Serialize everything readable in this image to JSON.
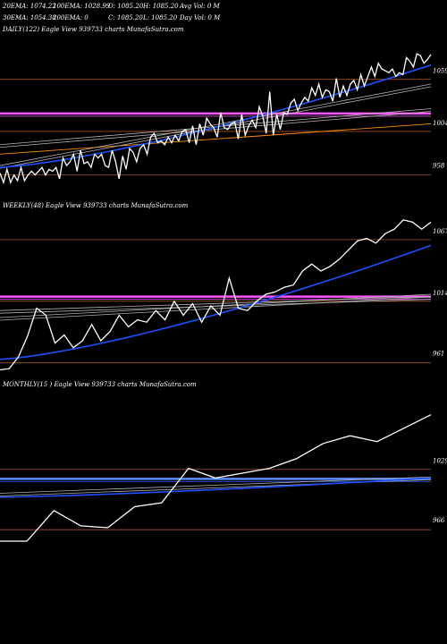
{
  "header": {
    "row1": [
      "20EMA: 1074.22",
      "100EMA: 1028.99",
      "O: 1085.20",
      "H: 1085.20",
      "Avg Vol: 0  M"
    ],
    "row2": [
      "30EMA: 1054.38",
      "200EMA: 0",
      "C: 1085.20",
      "L: 1085.20",
      "Day Vol: 0  M"
    ]
  },
  "panels": [
    {
      "label": "DAILY(122) Eagle   View  939733 charts MunafaSutra.com"
    },
    {
      "label": "WEEKLY(48) Eagle   View  939733 charts MunafaSutra.com"
    },
    {
      "label": "MONTHLY(15                    ) Eagle   View  939733 charts MunafaSutra.com"
    }
  ],
  "colors": {
    "background": "#000000",
    "price": "#ffffff",
    "ema20": "#1e50ff",
    "level": "#a0522d",
    "magenta": "#ff55ff",
    "orange": "#ff8c00",
    "blue_level": "#5d8cff",
    "grey": "#b0b0b0"
  },
  "chart_data": [
    {
      "type": "line",
      "name": "daily",
      "ylim": [
        935,
        1105
      ],
      "yticks": [
        {
          "value": 1059,
          "label": "1059"
        },
        {
          "value": 1004,
          "label": "1004"
        },
        {
          "value": 958,
          "label": "958"
        }
      ],
      "h_levels": [
        {
          "value": 1059,
          "color": "level"
        },
        {
          "value": 1004,
          "color": "level"
        },
        {
          "value": 958,
          "color": "level"
        },
        {
          "value": 1023,
          "color": "magenta",
          "thick": true
        }
      ],
      "price": [
        960,
        950,
        964,
        950,
        958,
        952,
        966,
        952,
        958,
        962,
        958,
        962,
        966,
        958,
        964,
        962,
        966,
        954,
        976,
        968,
        972,
        980,
        962,
        984,
        970,
        972,
        966,
        980,
        976,
        980,
        968,
        966,
        984,
        972,
        954,
        978,
        964,
        986,
        982,
        972,
        986,
        990,
        980,
        998,
        1002,
        992,
        994,
        990,
        998,
        992,
        1000,
        994,
        1004,
        1006,
        992,
        1010,
        990,
        1012,
        1000,
        1018,
        1012,
        1008,
        998,
        1024,
        1008,
        1006,
        1012,
        1014,
        996,
        1022,
        1000,
        1010,
        1016,
        1008,
        1030,
        1020,
        1002,
        1046,
        1000,
        1022,
        1006,
        1024,
        1022,
        1034,
        1038,
        1026,
        1034,
        1040,
        1036,
        1050,
        1042,
        1054,
        1040,
        1048,
        1046,
        1036,
        1060,
        1040,
        1052,
        1042,
        1054,
        1058,
        1048,
        1064,
        1052,
        1062,
        1072,
        1062,
        1076,
        1070,
        1068,
        1066,
        1070,
        1062,
        1066,
        1064,
        1082,
        1078,
        1072,
        1086,
        1084,
        1076,
        1080,
        1085.2
      ],
      "ema20_from": [
        0,
        966
      ],
      "ema20_to": [
        1,
        1074
      ],
      "ema30_from": [
        0,
        968
      ],
      "ema30_to": [
        1,
        1054
      ],
      "ema100_from": [
        0,
        990
      ],
      "ema100_to": [
        1,
        1028
      ],
      "orange_from": [
        0,
        980
      ],
      "orange_to": [
        1,
        1012
      ]
    },
    {
      "type": "line",
      "name": "weekly",
      "ylim": [
        950,
        1090
      ],
      "yticks": [
        {
          "value": 1067,
          "label": "1067"
        },
        {
          "value": 1014,
          "label": "1014"
        },
        {
          "value": 961,
          "label": "961"
        }
      ],
      "h_levels": [
        {
          "value": 1067,
          "color": "level"
        },
        {
          "value": 1014,
          "color": "level"
        },
        {
          "value": 961,
          "color": "level"
        },
        {
          "value": 1018,
          "color": "magenta",
          "thick": true
        }
      ],
      "price": [
        955,
        956,
        966,
        984,
        1008,
        1002,
        978,
        985,
        974,
        980,
        994,
        980,
        988,
        1002,
        992,
        998,
        996,
        1006,
        998,
        1014,
        1002,
        1012,
        996,
        1010,
        1002,
        1034,
        1008,
        1006,
        1014,
        1020,
        1022,
        1026,
        1028,
        1040,
        1046,
        1040,
        1044,
        1050,
        1058,
        1066,
        1068,
        1064,
        1072,
        1076,
        1084,
        1082,
        1076,
        1082
      ],
      "ema20_from": [
        0,
        964
      ],
      "ema20_to": [
        1,
        1062
      ],
      "ema30_from": [
        0,
        1006
      ],
      "ema30_to": [
        1,
        1018
      ],
      "ema100_from": [
        0,
        1000
      ],
      "ema100_to": [
        1,
        1020
      ]
    },
    {
      "type": "line",
      "name": "monthly",
      "ylim": [
        940,
        1110
      ],
      "yticks": [
        {
          "value": 1029,
          "label": "1029"
        },
        {
          "value": 966,
          "label": "966"
        }
      ],
      "h_levels": [
        {
          "value": 1029,
          "color": "level"
        },
        {
          "value": 966,
          "color": "level"
        },
        {
          "value": 1019,
          "color": "blue_level",
          "thick": true
        }
      ],
      "price": [
        954,
        954,
        986,
        970,
        968,
        990,
        994,
        1030,
        1020,
        1025,
        1030,
        1040,
        1056,
        1064,
        1058,
        1072,
        1086
      ],
      "ema20_from": [
        0,
        1000
      ],
      "ema20_to": [
        1,
        1020
      ],
      "ema30_from": [
        0,
        1004
      ],
      "ema30_to": [
        1,
        1021
      ]
    }
  ]
}
